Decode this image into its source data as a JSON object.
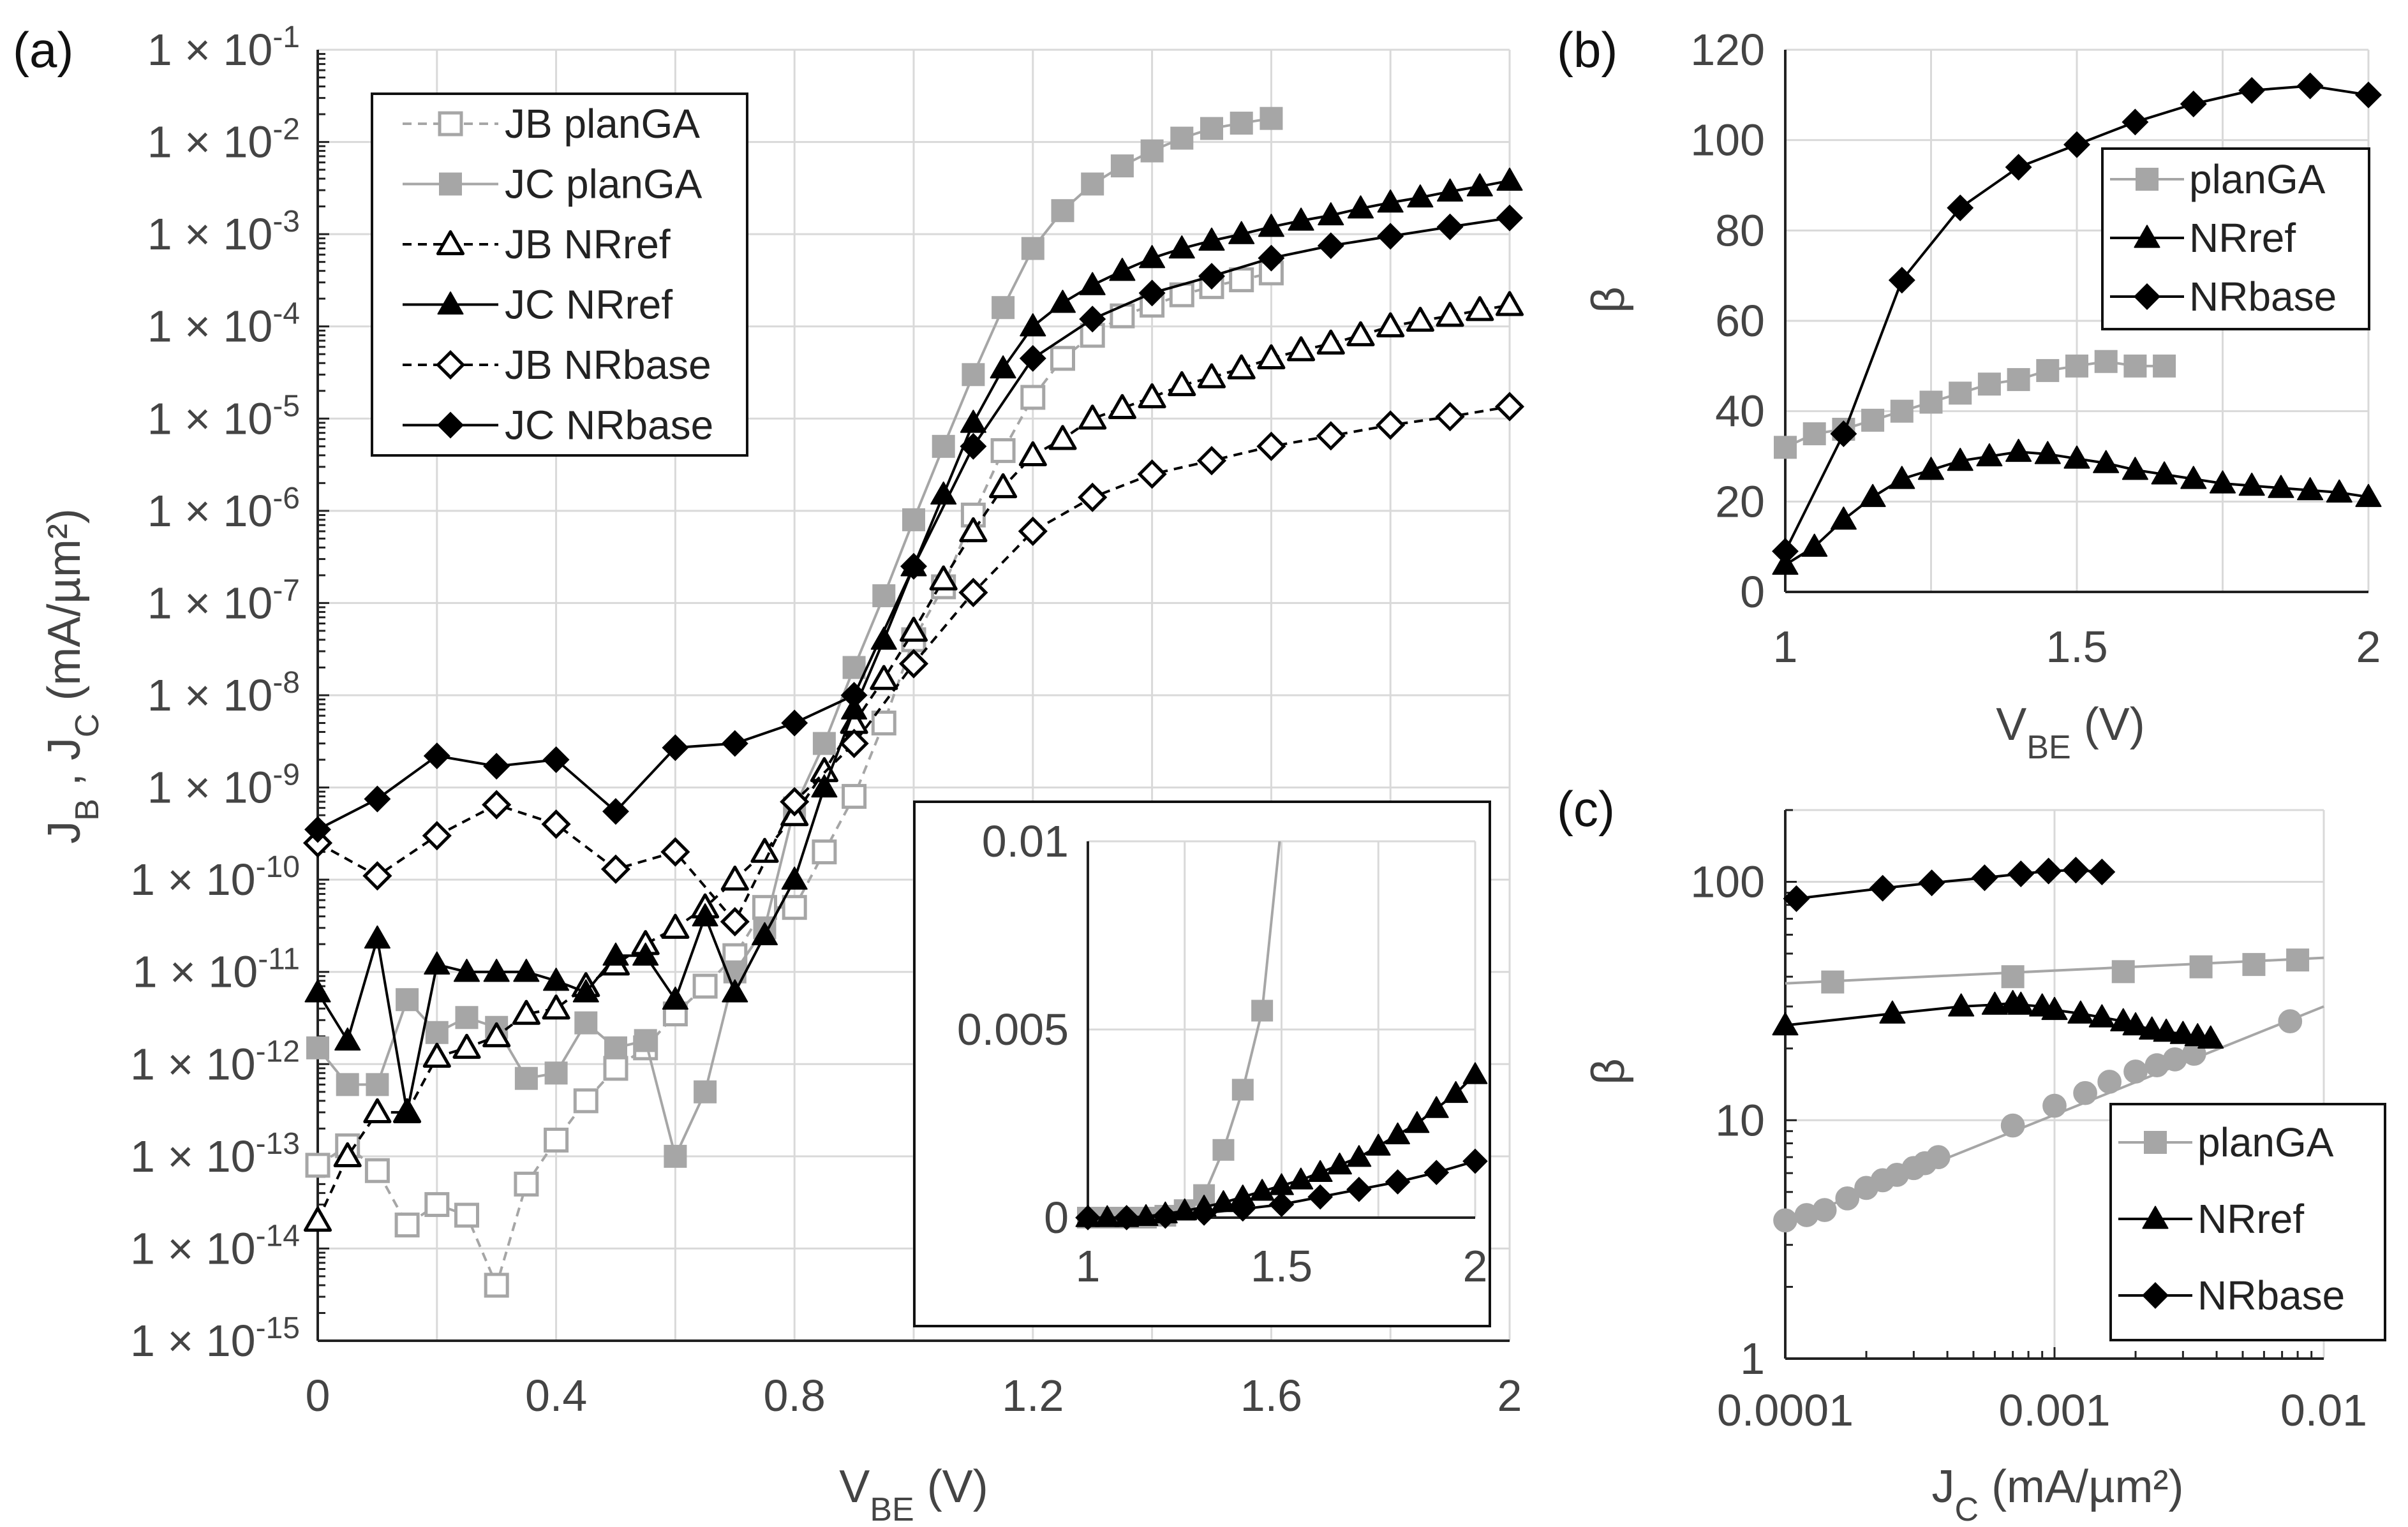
{
  "chart_data": [
    {
      "id": "a",
      "panel_label": "(a)",
      "type": "scatter",
      "xlabel": "V_BE (V)",
      "ylabel": "J_B , J_C (mA/µm²)",
      "xlim": [
        0,
        2
      ],
      "ylim_exp": [
        -15,
        -1
      ],
      "yscale": "log",
      "xticks": [
        "0",
        "0.4",
        "0.8",
        "1.2",
        "1.6",
        "2"
      ],
      "xtick_values": [
        0,
        0.4,
        0.8,
        1.2,
        1.6,
        2
      ],
      "yticks": [
        {
          "base": "1 × 10",
          "exp": "-1"
        },
        {
          "base": "1 × 10",
          "exp": "-2"
        },
        {
          "base": "1 × 10",
          "exp": "-3"
        },
        {
          "base": "1 × 10",
          "exp": "-4"
        },
        {
          "base": "1 × 10",
          "exp": "-5"
        },
        {
          "base": "1 × 10",
          "exp": "-6"
        },
        {
          "base": "1 × 10",
          "exp": "-7"
        },
        {
          "base": "1 × 10",
          "exp": "-8"
        },
        {
          "base": "1 × 10",
          "exp": "-9"
        },
        {
          "base": "1 × 10",
          "exp": "-10"
        },
        {
          "base": "1 × 10",
          "exp": "-11"
        },
        {
          "base": "1 × 10",
          "exp": "-12"
        },
        {
          "base": "1 × 10",
          "exp": "-13"
        },
        {
          "base": "1 × 10",
          "exp": "-14"
        },
        {
          "base": "1 × 10",
          "exp": "-15"
        }
      ],
      "legend_position": "top-left",
      "series": [
        {
          "name": "JB planGA",
          "color": "#a6a6a6",
          "marker": "square-open",
          "dash": true,
          "x": [
            0,
            0.05,
            0.1,
            0.15,
            0.2,
            0.25,
            0.3,
            0.35,
            0.4,
            0.45,
            0.5,
            0.55,
            0.6,
            0.65,
            0.7,
            0.75,
            0.8,
            0.85,
            0.9,
            0.95,
            1.0,
            1.05,
            1.1,
            1.15,
            1.2,
            1.25,
            1.3,
            1.35,
            1.4,
            1.45,
            1.5,
            1.55,
            1.6
          ],
          "y": [
            8e-14,
            1.3e-13,
            7e-14,
            1.8e-14,
            3e-14,
            2.3e-14,
            4e-15,
            5e-14,
            1.5e-13,
            4e-13,
            9e-13,
            1.5e-12,
            3.5e-12,
            7e-12,
            1.5e-11,
            5e-11,
            5e-11,
            2e-10,
            8e-10,
            5e-09,
            4e-08,
            1.5e-07,
            9e-07,
            4.5e-06,
            1.7e-05,
            4.5e-05,
            8e-05,
            0.00013,
            0.00017,
            0.00022,
            0.00027,
            0.00032,
            0.00038
          ]
        },
        {
          "name": "JC planGA",
          "color": "#a6a6a6",
          "marker": "square",
          "dash": false,
          "x": [
            0,
            0.05,
            0.1,
            0.15,
            0.2,
            0.25,
            0.3,
            0.35,
            0.4,
            0.45,
            0.5,
            0.55,
            0.6,
            0.65,
            0.7,
            0.75,
            0.8,
            0.85,
            0.9,
            0.95,
            1.0,
            1.05,
            1.1,
            1.15,
            1.2,
            1.25,
            1.3,
            1.35,
            1.4,
            1.45,
            1.5,
            1.55,
            1.6
          ],
          "y": [
            1.5e-12,
            6e-13,
            6e-13,
            5e-12,
            2.2e-12,
            3.2e-12,
            2.5e-12,
            7e-13,
            8e-13,
            2.8e-12,
            1.5e-12,
            1.8e-12,
            1e-13,
            5e-13,
            1e-11,
            3e-11,
            6e-10,
            3e-09,
            2e-08,
            1.2e-07,
            8e-07,
            5e-06,
            3e-05,
            0.00016,
            0.0007,
            0.0018,
            0.0035,
            0.0055,
            0.008,
            0.011,
            0.014,
            0.016,
            0.018
          ]
        },
        {
          "name": "JB NRref",
          "color": "#000000",
          "marker": "triangle-open",
          "dash": true,
          "x": [
            0,
            0.05,
            0.1,
            0.15,
            0.2,
            0.25,
            0.3,
            0.35,
            0.4,
            0.45,
            0.5,
            0.55,
            0.6,
            0.65,
            0.7,
            0.75,
            0.8,
            0.85,
            0.9,
            0.95,
            1.0,
            1.05,
            1.1,
            1.15,
            1.2,
            1.25,
            1.3,
            1.35,
            1.4,
            1.45,
            1.5,
            1.55,
            1.6,
            1.65,
            1.7,
            1.75,
            1.8,
            1.85,
            1.9,
            1.95,
            2.0
          ],
          "y": [
            2e-14,
            1e-13,
            3e-13,
            3e-13,
            1.2e-12,
            1.5e-12,
            2e-12,
            3.5e-12,
            4e-12,
            7e-12,
            1.2e-11,
            2e-11,
            3e-11,
            5e-11,
            1e-10,
            2e-10,
            5e-10,
            1.5e-09,
            5e-09,
            1.5e-08,
            5e-08,
            1.8e-07,
            6e-07,
            1.8e-06,
            4e-06,
            6e-06,
            1e-05,
            1.3e-05,
            1.7e-05,
            2.3e-05,
            2.8e-05,
            3.5e-05,
            4.5e-05,
            5.5e-05,
            6.5e-05,
            8e-05,
            0.0001,
            0.000115,
            0.00013,
            0.00015,
            0.00017
          ]
        },
        {
          "name": "JC NRref",
          "color": "#000000",
          "marker": "triangle",
          "dash": false,
          "x": [
            0,
            0.05,
            0.1,
            0.15,
            0.2,
            0.25,
            0.3,
            0.35,
            0.4,
            0.45,
            0.5,
            0.55,
            0.6,
            0.65,
            0.7,
            0.75,
            0.8,
            0.85,
            0.9,
            0.95,
            1.0,
            1.05,
            1.1,
            1.15,
            1.2,
            1.25,
            1.3,
            1.35,
            1.4,
            1.45,
            1.5,
            1.55,
            1.6,
            1.65,
            1.7,
            1.75,
            1.8,
            1.85,
            1.9,
            1.95,
            2.0
          ],
          "y": [
            6e-12,
            1.8e-12,
            2.3e-11,
            3e-13,
            1.2e-11,
            1e-11,
            1e-11,
            1e-11,
            8e-12,
            6e-12,
            1.5e-11,
            1.5e-11,
            5e-12,
            4e-11,
            6e-12,
            2.5e-11,
            1e-10,
            1e-09,
            7e-09,
            4e-08,
            2.5e-07,
            1.5e-06,
            9e-06,
            3.5e-05,
            0.0001,
            0.00018,
            0.00028,
            0.0004,
            0.00055,
            0.0007,
            0.00085,
            0.001,
            0.0012,
            0.0014,
            0.0016,
            0.0019,
            0.0022,
            0.0025,
            0.0029,
            0.0033,
            0.0038
          ]
        },
        {
          "name": "JB NRbase",
          "color": "#000000",
          "marker": "diamond-open",
          "dash": true,
          "x": [
            0,
            0.1,
            0.2,
            0.3,
            0.4,
            0.5,
            0.6,
            0.7,
            0.8,
            0.9,
            1.0,
            1.1,
            1.2,
            1.3,
            1.4,
            1.5,
            1.6,
            1.7,
            1.8,
            1.9,
            2.0
          ],
          "y": [
            2.5e-10,
            1.1e-10,
            3e-10,
            6.5e-10,
            4e-10,
            1.3e-10,
            2e-10,
            3.5e-11,
            7e-10,
            3e-09,
            2.2e-08,
            1.3e-07,
            6e-07,
            1.4e-06,
            2.5e-06,
            3.5e-06,
            5e-06,
            6.5e-06,
            8.5e-06,
            1.05e-05,
            1.35e-05
          ]
        },
        {
          "name": "JC NRbase",
          "color": "#000000",
          "marker": "diamond",
          "dash": false,
          "x": [
            0,
            0.1,
            0.2,
            0.3,
            0.4,
            0.5,
            0.6,
            0.7,
            0.8,
            0.9,
            1.0,
            1.1,
            1.2,
            1.3,
            1.4,
            1.5,
            1.6,
            1.7,
            1.8,
            1.9,
            2.0
          ],
          "y": [
            3.5e-10,
            7.5e-10,
            2.2e-09,
            1.7e-09,
            2e-09,
            5.5e-10,
            2.7e-09,
            3e-09,
            5e-09,
            1e-08,
            2.5e-07,
            5e-06,
            4.5e-05,
            0.00012,
            0.00023,
            0.00035,
            0.00055,
            0.00075,
            0.00095,
            0.0012,
            0.0015
          ]
        }
      ],
      "inset": {
        "type": "line",
        "xlim": [
          1,
          2
        ],
        "ylim": [
          0,
          0.01
        ],
        "xticks": [
          "1",
          "1.5",
          "2"
        ],
        "xtick_values": [
          1,
          1.5,
          2
        ],
        "yticks": [
          "0",
          "0.005",
          "0.01"
        ],
        "ytick_values": [
          0,
          0.005,
          0.01
        ],
        "series": [
          {
            "name": "JC planGA",
            "color": "#a6a6a6",
            "marker": "square",
            "x": [
              1,
              1.05,
              1.1,
              1.15,
              1.2,
              1.25,
              1.3,
              1.35,
              1.4,
              1.45
            ],
            "y": [
              0,
              0,
              0,
              0,
              5e-05,
              0.0002,
              0.0006,
              0.0018,
              0.0034,
              0.0055
            ]
          },
          {
            "name": "JC NRref",
            "color": "#000000",
            "marker": "triangle",
            "x": [
              1,
              1.05,
              1.1,
              1.15,
              1.2,
              1.25,
              1.3,
              1.35,
              1.4,
              1.45,
              1.5,
              1.55,
              1.6,
              1.65,
              1.7,
              1.75,
              1.8,
              1.85,
              1.9,
              1.95,
              2.0
            ],
            "y": [
              0,
              0,
              0,
              3e-05,
              0.0001,
              0.00018,
              0.00028,
              0.0004,
              0.00055,
              0.0007,
              0.00085,
              0.001,
              0.0012,
              0.0014,
              0.0016,
              0.0019,
              0.0022,
              0.0025,
              0.0029,
              0.0033,
              0.0038
            ]
          },
          {
            "name": "JC NRbase",
            "color": "#000000",
            "marker": "diamond",
            "x": [
              1,
              1.1,
              1.2,
              1.3,
              1.4,
              1.5,
              1.6,
              1.7,
              1.8,
              1.9,
              2.0
            ],
            "y": [
              0,
              0,
              4e-05,
              0.00012,
              0.00023,
              0.00035,
              0.00055,
              0.00075,
              0.00095,
              0.0012,
              0.0015
            ]
          }
        ]
      }
    },
    {
      "id": "b",
      "panel_label": "(b)",
      "type": "line",
      "xlabel": "V_BE (V)",
      "ylabel": "β",
      "xlim": [
        1,
        2
      ],
      "ylim": [
        0,
        120
      ],
      "xticks": [
        "1",
        "1.5",
        "2"
      ],
      "xtick_values": [
        1,
        1.5,
        2
      ],
      "yticks": [
        "0",
        "20",
        "40",
        "60",
        "80",
        "100",
        "120"
      ],
      "ytick_values": [
        0,
        20,
        40,
        60,
        80,
        100,
        120
      ],
      "legend_position": "top-right",
      "series": [
        {
          "name": "planGA",
          "color": "#a6a6a6",
          "marker": "square",
          "x": [
            1,
            1.05,
            1.1,
            1.15,
            1.2,
            1.25,
            1.3,
            1.35,
            1.4,
            1.45,
            1.5,
            1.55,
            1.6,
            1.65
          ],
          "y": [
            32,
            35,
            36,
            38,
            40,
            42,
            44,
            46,
            47,
            49,
            50,
            51,
            50,
            50
          ]
        },
        {
          "name": "NRref",
          "color": "#000000",
          "marker": "triangle",
          "x": [
            1,
            1.05,
            1.1,
            1.15,
            1.2,
            1.25,
            1.3,
            1.35,
            1.4,
            1.45,
            1.5,
            1.55,
            1.6,
            1.65,
            1.7,
            1.75,
            1.8,
            1.85,
            1.9,
            1.95,
            2.0
          ],
          "y": [
            6,
            10,
            16,
            21,
            25,
            27,
            29,
            30,
            31,
            30.5,
            29.5,
            28.5,
            27,
            26,
            25,
            24,
            23.5,
            23,
            22.5,
            22,
            21
          ]
        },
        {
          "name": "NRbase",
          "color": "#000000",
          "marker": "diamond",
          "x": [
            1,
            1.1,
            1.2,
            1.3,
            1.4,
            1.5,
            1.6,
            1.7,
            1.8,
            1.9,
            2.0
          ],
          "y": [
            9,
            35,
            69,
            85,
            94,
            99,
            104,
            108,
            111,
            112,
            110
          ]
        }
      ]
    },
    {
      "id": "c",
      "panel_label": "(c)",
      "type": "scatter",
      "xlabel": "J_C (mA/µm²)",
      "ylabel": "β",
      "xscale": "log",
      "yscale": "log",
      "xlim": [
        0.0001,
        0.01
      ],
      "ylim": [
        1,
        200
      ],
      "xticks": [
        "0.0001",
        "0.001",
        "0.01"
      ],
      "xtick_values": [
        0.0001,
        0.001,
        0.01
      ],
      "yticks": [
        "1",
        "10",
        "100"
      ],
      "ytick_values": [
        1,
        10,
        100
      ],
      "legend_position": "bottom-right",
      "series": [
        {
          "name": "planGA",
          "color": "#a6a6a6",
          "marker": "square",
          "x": [
            0.00015,
            0.0007,
            0.0018,
            0.0035,
            0.0055,
            0.008
          ],
          "y": [
            38,
            40,
            42,
            44,
            45,
            47
          ]
        },
        {
          "name": "",
          "color": "#a6a6a6",
          "marker": "circle",
          "x": [
            0.0001,
            0.00012,
            0.00014,
            0.00017,
            0.0002,
            0.00023,
            0.00026,
            0.0003,
            0.00033,
            0.00037,
            0.0007,
            0.001,
            0.0013,
            0.0016,
            0.002,
            0.0024,
            0.0028,
            0.0033,
            0.0075
          ],
          "y": [
            3.8,
            4,
            4.2,
            4.7,
            5.2,
            5.6,
            5.9,
            6.3,
            6.6,
            7,
            9.5,
            11.5,
            13,
            14.5,
            16,
            17,
            18,
            19,
            26
          ]
        },
        {
          "name": "NRref",
          "color": "#000000",
          "marker": "triangle",
          "x": [
            0.0001,
            0.00025,
            0.00045,
            0.0006,
            0.0007,
            0.00075,
            0.0009,
            0.001,
            0.00125,
            0.0015,
            0.0018,
            0.002,
            0.0023,
            0.0026,
            0.003,
            0.0034,
            0.0038
          ],
          "y": [
            25,
            28,
            30,
            30.5,
            31,
            30.5,
            30,
            29,
            28,
            27,
            26,
            25,
            24,
            23.5,
            23,
            22.5,
            22
          ]
        },
        {
          "name": "NRbase",
          "color": "#000000",
          "marker": "diamond",
          "x": [
            0.00011,
            0.00023,
            0.00035,
            0.00055,
            0.00075,
            0.00095,
            0.0012,
            0.0015
          ],
          "y": [
            85,
            94,
            99,
            104,
            108,
            111,
            112,
            110
          ]
        }
      ]
    }
  ]
}
